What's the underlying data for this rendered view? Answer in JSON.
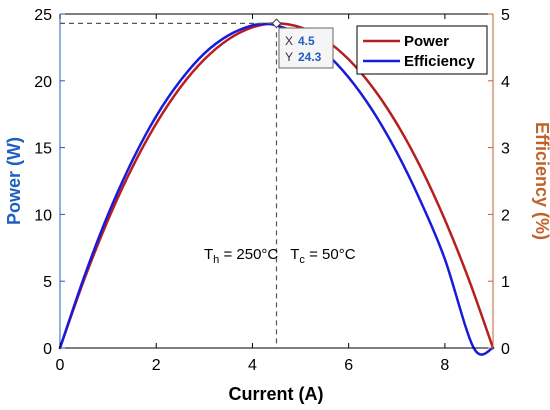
{
  "chart_data": {
    "type": "line",
    "xlabel": "Current (A)",
    "ylabel_left": "Power (W)",
    "ylabel_right": "Efficiency (%)",
    "xlim": [
      0,
      9
    ],
    "ylim_left": [
      0,
      25
    ],
    "ylim_right": [
      0,
      5
    ],
    "xticks": [
      0,
      2,
      4,
      6,
      8
    ],
    "yticks_left": [
      0,
      5,
      10,
      15,
      20,
      25
    ],
    "yticks_right": [
      0,
      1,
      2,
      3,
      4,
      5
    ],
    "grid": false,
    "legend_position": "top-right",
    "colors": {
      "power": "#b51f1f",
      "efficiency": "#1a1adb",
      "left_axis": "#1f5fbf",
      "right_axis": "#c0622a"
    },
    "series": [
      {
        "name": "Power",
        "axis": "left",
        "x": [
          0,
          0.5,
          1,
          1.5,
          2,
          2.5,
          3,
          3.5,
          4,
          4.5,
          5,
          5.5,
          6,
          6.5,
          7,
          7.5,
          8,
          8.5,
          9
        ],
        "y": [
          0,
          5.1,
          9.6,
          13.5,
          16.8,
          19.5,
          21.6,
          23.1,
          24.0,
          24.3,
          24.0,
          23.1,
          21.6,
          19.5,
          16.8,
          13.5,
          9.6,
          5.1,
          0
        ]
      },
      {
        "name": "Efficiency",
        "axis": "right",
        "x": [
          0,
          0.5,
          1,
          1.5,
          2,
          2.5,
          3,
          3.5,
          4,
          4.3,
          4.5,
          5,
          5.5,
          6,
          6.5,
          7,
          7.5,
          8,
          8.6,
          9
        ],
        "y": [
          0,
          1.06,
          2.0,
          2.8,
          3.47,
          4.0,
          4.41,
          4.68,
          4.83,
          4.85,
          4.83,
          4.69,
          4.43,
          4.05,
          3.55,
          2.93,
          2.19,
          1.33,
          0,
          0
        ]
      }
    ],
    "datatip": {
      "x_label": "X",
      "x_value": "4.5",
      "y_label": "Y",
      "y_value": "24.3",
      "x": 4.5,
      "y": 24.3
    },
    "annotation": {
      "t_h_main": "T",
      "t_h_sub": "h",
      "t_h_value": " = 250°C",
      "t_c_main": "T",
      "t_c_sub": "c",
      "t_c_value": " = 50°C",
      "x": 3.1,
      "y": 9.3
    }
  }
}
